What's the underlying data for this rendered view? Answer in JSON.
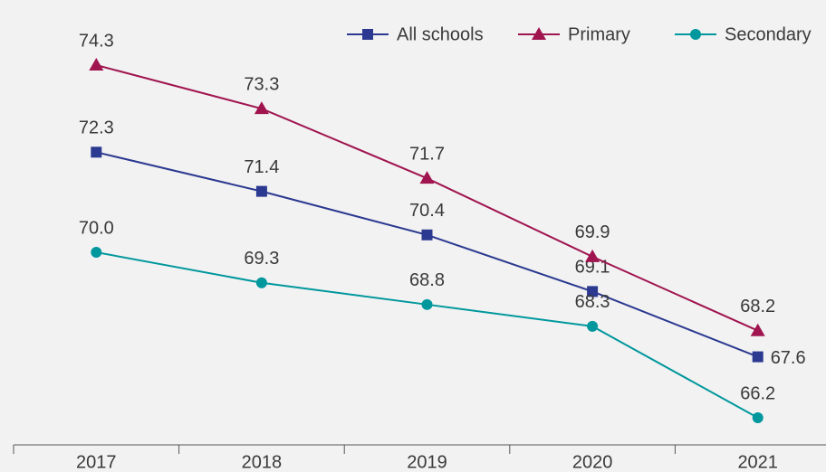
{
  "chart_data": {
    "type": "line",
    "categories": [
      "2017",
      "2018",
      "2019",
      "2020",
      "2021"
    ],
    "series": [
      {
        "name": "All schools",
        "color": "#2b3990",
        "marker": "square",
        "values": [
          72.3,
          71.4,
          70.4,
          69.1,
          67.6
        ],
        "value_labels": [
          "72.3",
          "71.4",
          "70.4",
          "69.1",
          "67.6"
        ]
      },
      {
        "name": "Primary",
        "color": "#a0144f",
        "marker": "triangle",
        "values": [
          74.3,
          73.3,
          71.7,
          69.9,
          68.2
        ],
        "value_labels": [
          "74.3",
          "73.3",
          "71.7",
          "69.9",
          "68.2"
        ]
      },
      {
        "name": "Secondary",
        "color": "#00979d",
        "marker": "circle",
        "values": [
          70.0,
          69.3,
          68.8,
          68.3,
          66.2
        ],
        "value_labels": [
          "70.0",
          "69.3",
          "68.8",
          "68.3",
          "66.2"
        ]
      }
    ],
    "legend": "top-right"
  }
}
